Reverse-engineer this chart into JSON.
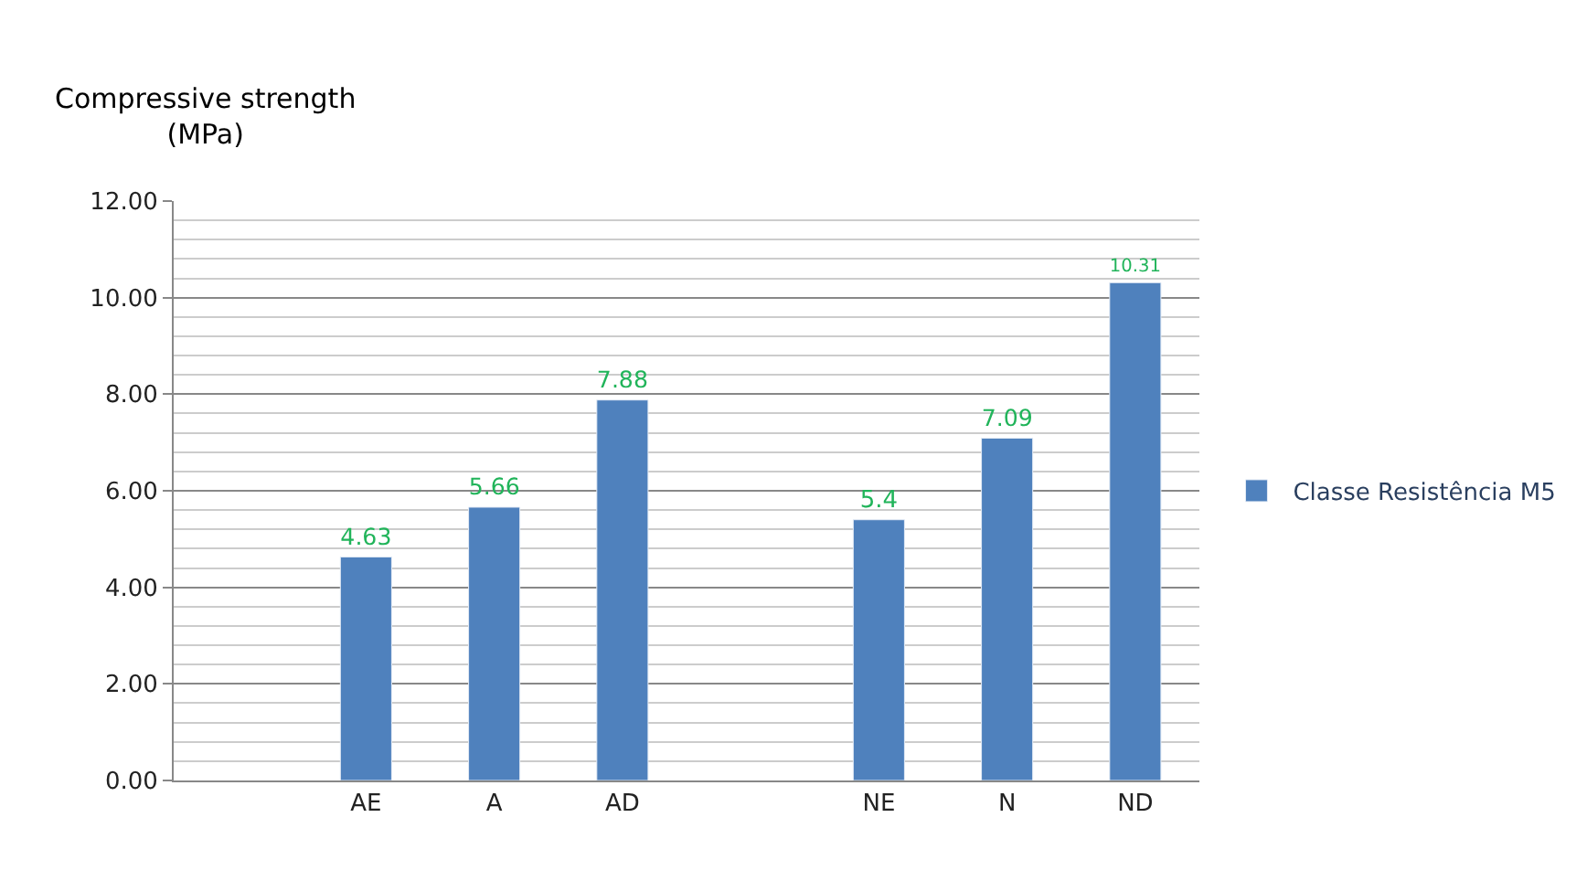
{
  "chart_data": {
    "type": "bar",
    "ylabel": "Compressive strength\n(MPa)",
    "categories": [
      null,
      "AE",
      "A",
      "AD",
      null,
      "NE",
      "N",
      "ND"
    ],
    "series": [
      {
        "name": "Classe Resistência M5",
        "color": "#4f81bd",
        "values": [
          null,
          4.63,
          5.66,
          7.88,
          null,
          5.4,
          7.09,
          10.31
        ]
      }
    ],
    "ylim": [
      0,
      12
    ],
    "yticks": [
      {
        "value": 0,
        "label": "0.00"
      },
      {
        "value": 2,
        "label": "2.00"
      },
      {
        "value": 4,
        "label": "4.00"
      },
      {
        "value": 6,
        "label": "6.00"
      },
      {
        "value": 8,
        "label": "8.00"
      },
      {
        "value": 10,
        "label": "10.00"
      },
      {
        "value": 12,
        "label": "12.00"
      }
    ],
    "grid": "y",
    "legend": "right",
    "data_labels": true
  }
}
